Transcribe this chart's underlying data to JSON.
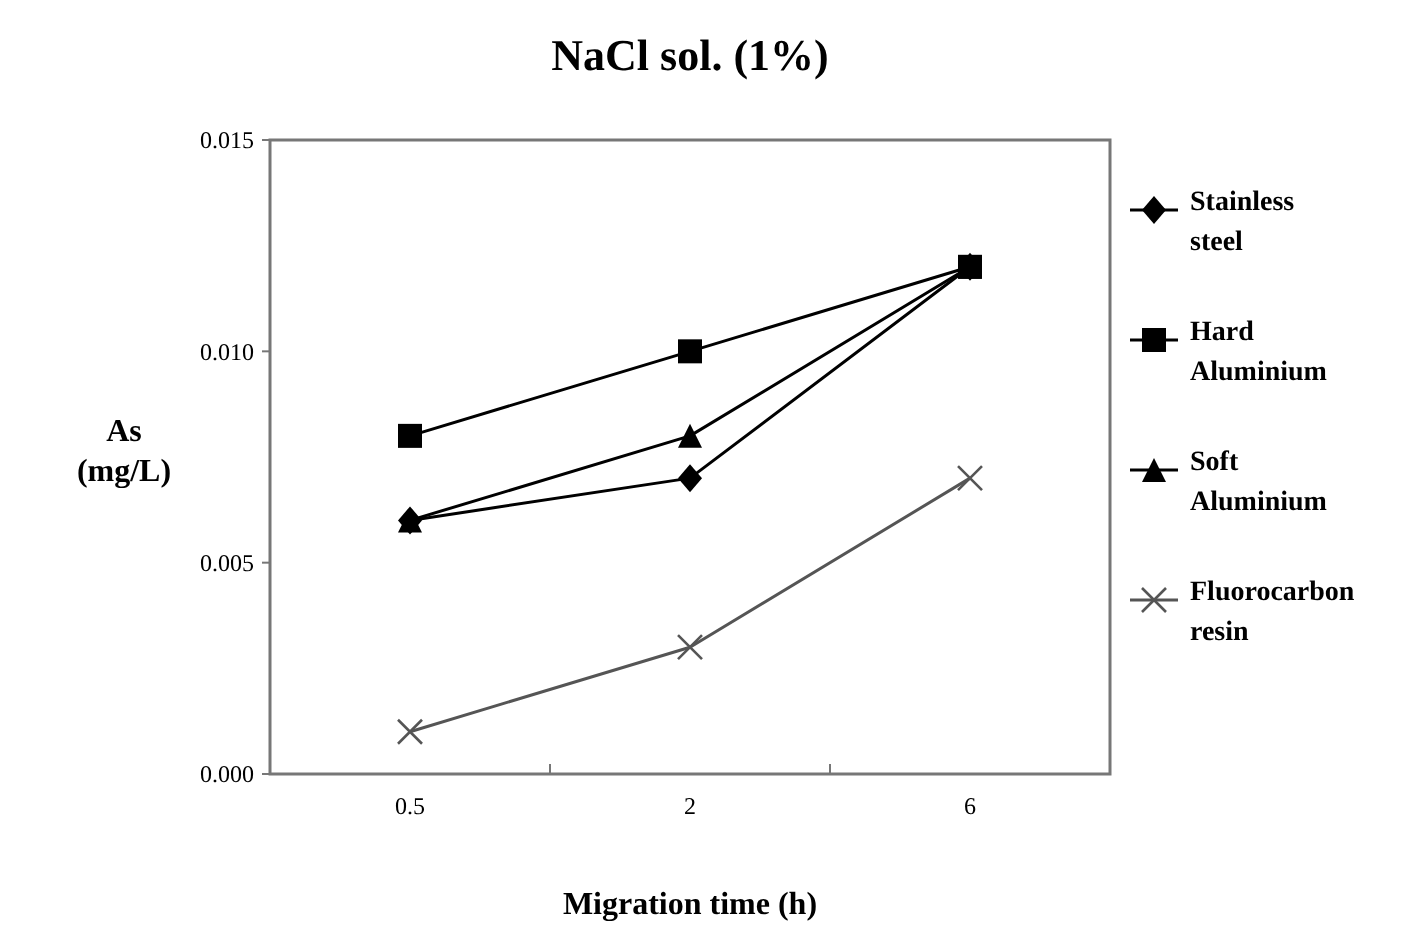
{
  "chart_data": {
    "type": "line",
    "title": "NaCl sol. (1%)",
    "xlabel": "Migration time (h)",
    "ylabel": "As (mg/L)",
    "categories": [
      "0.5",
      "2",
      "6"
    ],
    "ylim": [
      0,
      0.015
    ],
    "yticks": [
      {
        "value": 0,
        "label": "0.000"
      },
      {
        "value": 0.005,
        "label": "0.005"
      },
      {
        "value": 0.01,
        "label": "0.010"
      },
      {
        "value": 0.015,
        "label": "0.015"
      }
    ],
    "legend": "right",
    "grid": false,
    "series": [
      {
        "name": "Stainless steel",
        "color": "#000000",
        "marker": "diamond",
        "values": [
          0.006,
          0.007,
          0.012
        ]
      },
      {
        "name": "Hard Aluminium",
        "color": "#000000",
        "marker": "square",
        "values": [
          0.008,
          0.01,
          0.012
        ]
      },
      {
        "name": "Soft Aluminium",
        "color": "#000000",
        "marker": "triangle",
        "values": [
          0.006,
          0.008,
          0.012
        ]
      },
      {
        "name": "Fluorocarbon resin",
        "color": "#555555",
        "marker": "cross",
        "values": [
          0.001,
          0.003,
          0.007
        ]
      }
    ]
  }
}
